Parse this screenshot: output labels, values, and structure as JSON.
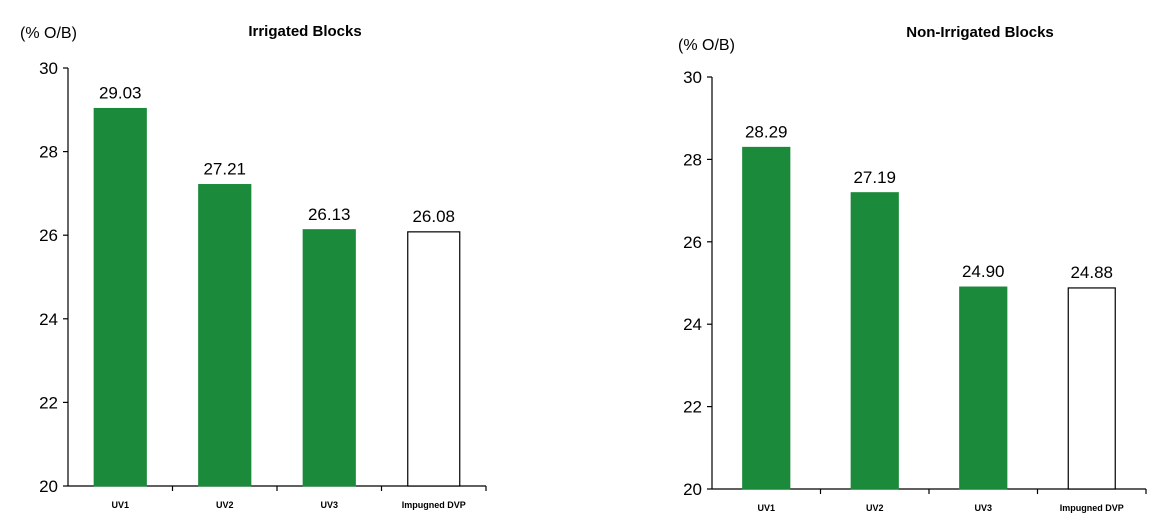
{
  "chart_data": [
    {
      "type": "bar",
      "title": "Irrigated Blocks",
      "ylabel": "(% O/B)",
      "xlabel": "",
      "ylim": [
        20,
        30
      ],
      "yticks": [
        20,
        22,
        24,
        26,
        28,
        30
      ],
      "categories": [
        "UV1",
        "UV2",
        "UV3",
        "Impugned DVP"
      ],
      "values": [
        29.03,
        27.21,
        26.13,
        26.08
      ],
      "value_labels": [
        "29.03",
        "27.21",
        "26.13",
        "26.08"
      ],
      "bar_fills": [
        "#1b8a3a",
        "#1b8a3a",
        "#1b8a3a",
        "#ffffff"
      ],
      "grid": false
    },
    {
      "type": "bar",
      "title": "Non-Irrigated Blocks",
      "ylabel": "(% O/B)",
      "xlabel": "",
      "ylim": [
        20,
        30
      ],
      "yticks": [
        20,
        22,
        24,
        26,
        28,
        30
      ],
      "categories": [
        "UV1",
        "UV2",
        "UV3",
        "Impugned DVP"
      ],
      "values": [
        28.29,
        27.19,
        24.9,
        24.88
      ],
      "value_labels": [
        "28.29",
        "27.19",
        "24.90",
        "24.88"
      ],
      "bar_fills": [
        "#1b8a3a",
        "#1b8a3a",
        "#1b8a3a",
        "#ffffff"
      ],
      "grid": false
    }
  ]
}
